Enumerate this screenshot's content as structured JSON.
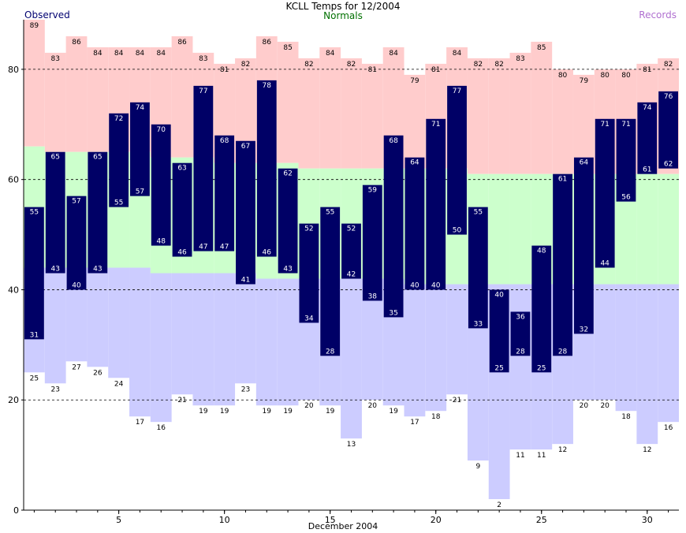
{
  "chart_data": {
    "type": "bar",
    "title": "KCLL Temps for 12/2004",
    "subtitle": "Normals",
    "xlabel": "December 2004",
    "ylabel": "",
    "ylim": [
      0,
      89
    ],
    "xlim": [
      0.5,
      31.5
    ],
    "yticks": [
      0,
      20,
      40,
      60,
      80
    ],
    "xticks": [
      5,
      10,
      15,
      20,
      25,
      30
    ],
    "grid": "horizontal dashed at 20, 40, 60, 80",
    "legend": [
      "Observed",
      "Records"
    ],
    "days": [
      1,
      2,
      3,
      4,
      5,
      6,
      7,
      8,
      9,
      10,
      11,
      12,
      13,
      14,
      15,
      16,
      17,
      18,
      19,
      20,
      21,
      22,
      23,
      24,
      25,
      26,
      27,
      28,
      29,
      30,
      31
    ],
    "series": [
      {
        "name": "Observed",
        "color": "#000066",
        "high": [
          55,
          65,
          57,
          65,
          72,
          74,
          70,
          63,
          77,
          68,
          67,
          78,
          62,
          52,
          55,
          52,
          59,
          68,
          64,
          71,
          77,
          55,
          40,
          36,
          48,
          61,
          64,
          71,
          71,
          74,
          76
        ],
        "low": [
          31,
          43,
          40,
          43,
          55,
          57,
          48,
          46,
          47,
          47,
          41,
          46,
          43,
          34,
          28,
          42,
          38,
          35,
          40,
          40,
          50,
          33,
          25,
          28,
          25,
          28,
          32,
          44,
          56,
          61,
          62
        ]
      },
      {
        "name": "Normals",
        "color_high": "#ccffcc",
        "color_low": "#ccccff",
        "high": [
          66,
          65,
          65,
          65,
          65,
          65,
          64,
          64,
          64,
          63,
          63,
          63,
          63,
          62,
          62,
          62,
          62,
          62,
          62,
          62,
          62,
          61,
          61,
          61,
          61,
          61,
          61,
          61,
          61,
          61,
          61
        ],
        "low": [
          44,
          44,
          44,
          44,
          44,
          44,
          43,
          43,
          43,
          43,
          43,
          42,
          42,
          42,
          42,
          42,
          42,
          42,
          41,
          41,
          41,
          41,
          41,
          41,
          41,
          41,
          41,
          41,
          41,
          41,
          41
        ]
      },
      {
        "name": "Records",
        "color_high": "#ffcccc",
        "color_low": "#ccccff",
        "high": [
          89,
          83,
          86,
          84,
          84,
          84,
          84,
          86,
          83,
          81,
          82,
          86,
          85,
          82,
          84,
          82,
          81,
          84,
          79,
          81,
          84,
          82,
          82,
          83,
          85,
          80,
          79,
          80,
          80,
          81,
          82
        ],
        "low": [
          25,
          23,
          27,
          26,
          24,
          17,
          16,
          21,
          19,
          19,
          23,
          19,
          19,
          20,
          19,
          13,
          20,
          19,
          17,
          18,
          21,
          9,
          2,
          11,
          11,
          12,
          20,
          20,
          18,
          12,
          16
        ]
      }
    ]
  }
}
